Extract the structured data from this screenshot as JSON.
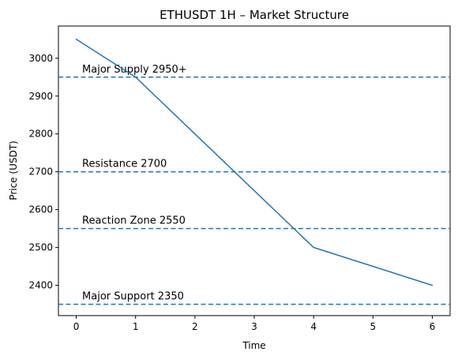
{
  "chart_data": {
    "type": "line",
    "title": "ETHUSDT 1H – Market Structure",
    "xlabel": "Time",
    "ylabel": "Price (USDT)",
    "xlim": [
      -0.3,
      6.3
    ],
    "ylim": [
      2320,
      3085
    ],
    "xticks": [
      0,
      1,
      2,
      3,
      4,
      5,
      6
    ],
    "yticks": [
      2400,
      2500,
      2600,
      2700,
      2800,
      2900,
      3000
    ],
    "grid": false,
    "series": [
      {
        "x": [
          0,
          1,
          4,
          6
        ],
        "y": [
          3050,
          2950,
          2500,
          2400
        ],
        "color": "#1f77b4"
      }
    ],
    "levels": [
      {
        "value": 2950,
        "label": "Major Supply 2950+"
      },
      {
        "value": 2700,
        "label": "Resistance 2700"
      },
      {
        "value": 2550,
        "label": "Reaction Zone 2550"
      },
      {
        "value": 2350,
        "label": "Major Support 2350"
      }
    ],
    "level_color": "#1f77b4",
    "label_x": 0.1
  }
}
